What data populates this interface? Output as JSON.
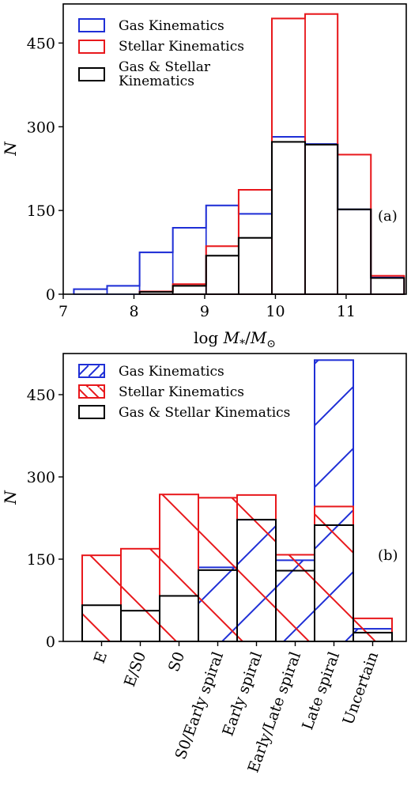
{
  "chart_data": [
    {
      "type": "histogram",
      "panel_label": "(a)",
      "xlabel": "log M*/M⊙",
      "ylabel": "N",
      "xlim": [
        7.0,
        11.85
      ],
      "ylim": [
        0,
        520
      ],
      "xticks": [
        "7",
        "8",
        "9",
        "10",
        "11"
      ],
      "yticks": [
        "0",
        "150",
        "300",
        "450"
      ],
      "legend_position": "top-left",
      "bin_edges": [
        7.15,
        7.62,
        8.08,
        8.55,
        9.02,
        9.48,
        9.95,
        10.42,
        10.88,
        11.35,
        11.82
      ],
      "series": [
        {
          "name": "Gas Kinematics",
          "color": "#1f2fd6",
          "values": [
            9,
            15,
            75,
            119,
            159,
            144,
            282,
            269,
            152,
            30
          ]
        },
        {
          "name": "Stellar Kinematics",
          "color": "#e8181c",
          "values": [
            0,
            0,
            5,
            18,
            86,
            187,
            494,
            502,
            250,
            33
          ]
        },
        {
          "name": "Gas & Stellar\nKinematics",
          "color": "#000000",
          "values": [
            0,
            0,
            4,
            15,
            69,
            101,
            273,
            268,
            152,
            29
          ]
        }
      ]
    },
    {
      "type": "bar",
      "panel_label": "(b)",
      "xlabel": "",
      "ylabel": "N",
      "ylim": [
        0,
        525
      ],
      "yticks": [
        "0",
        "150",
        "300",
        "450"
      ],
      "legend_position": "top-left",
      "categories": [
        "E",
        "E/S0",
        "S0",
        "S0/Early spiral",
        "Early spiral",
        "Early/Late spiral",
        "Late spiral",
        "Uncertain"
      ],
      "series": [
        {
          "name": "Gas Kinematics",
          "color": "#1f2fd6",
          "hatch": "forward",
          "values": [
            0,
            0,
            0,
            135,
            222,
            148,
            513,
            23
          ]
        },
        {
          "name": "Stellar Kinematics",
          "color": "#e8181c",
          "hatch": "backward",
          "values": [
            157,
            169,
            268,
            262,
            267,
            158,
            246,
            42
          ]
        },
        {
          "name": "Gas & Stellar Kinematics",
          "color": "#000000",
          "values": [
            66,
            56,
            83,
            130,
            222,
            129,
            212,
            16
          ]
        }
      ]
    }
  ]
}
